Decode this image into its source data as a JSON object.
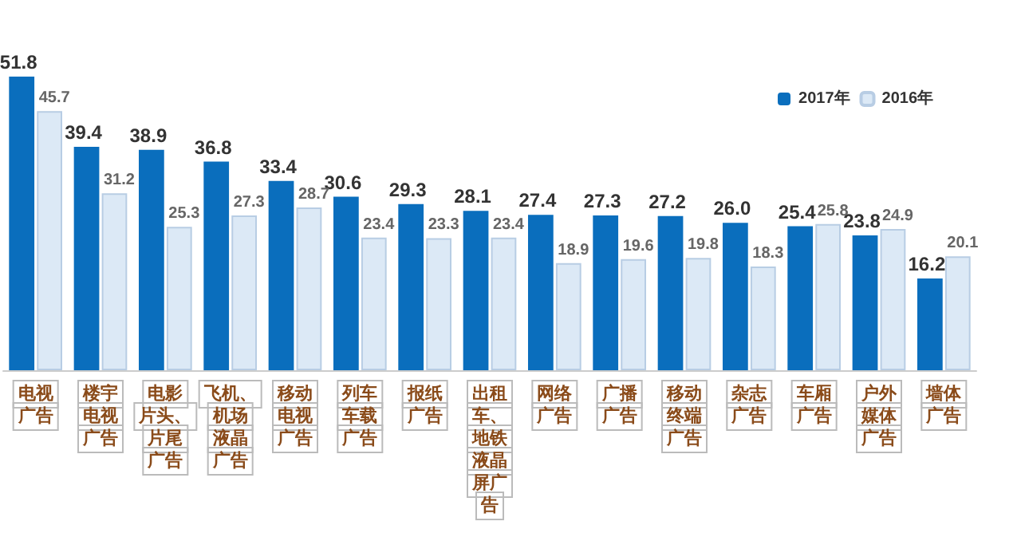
{
  "chart_data": {
    "type": "bar",
    "categories": [
      "电视广告",
      "楼宇电视广告",
      "电影片头、片尾广告",
      "飞机、机场液晶广告",
      "移动电视广告",
      "列车车载广告",
      "报纸广告",
      "出租车、地铁液晶屏广告",
      "网络广告",
      "广播广告",
      "移动终端广告",
      "杂志广告",
      "车厢广告",
      "户外媒体广告",
      "墙体广告"
    ],
    "series": [
      {
        "name": "2017年",
        "color": "#0a6ebd",
        "values": [
          51.8,
          39.4,
          38.9,
          36.8,
          33.4,
          30.6,
          29.3,
          28.1,
          27.4,
          27.3,
          27.2,
          26.0,
          25.4,
          23.8,
          16.2
        ],
        "value_labels": [
          "51.8",
          "39.4",
          "38.9",
          "36.8",
          "33.4",
          "30.6",
          "29.3",
          "28.1",
          "27.4",
          "27.3",
          "27.2",
          "26.0",
          "25.4",
          "23.8",
          "16.2"
        ]
      },
      {
        "name": "2016年",
        "color": "#dce9f6",
        "values": [
          45.7,
          31.2,
          25.3,
          27.3,
          28.7,
          23.4,
          23.3,
          23.4,
          18.9,
          19.6,
          19.8,
          18.3,
          25.8,
          24.9,
          20.1
        ]
      }
    ],
    "data_labels": true,
    "legend": "top right",
    "grid": false,
    "tick_labels": "x"
  }
}
